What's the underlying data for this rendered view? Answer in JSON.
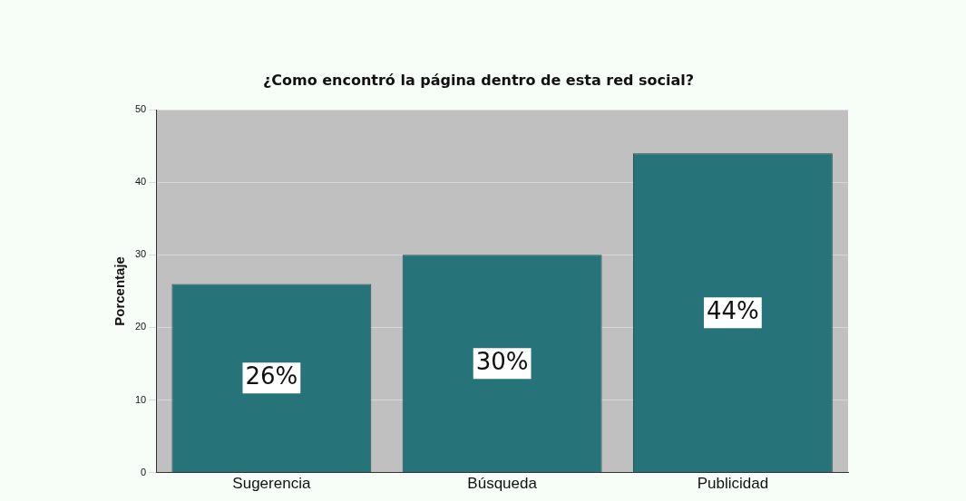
{
  "chart_data": {
    "type": "bar",
    "title": "¿Como encontró la página dentro de esta red social?",
    "ylabel": "Porcentaje",
    "categories": [
      "Sugerencia",
      "Búsqueda",
      "Publicidad"
    ],
    "values": [
      26,
      30,
      44
    ],
    "value_labels": [
      "26%",
      "30%",
      "44%"
    ],
    "color": "#26737a",
    "ylim": [
      0,
      50
    ],
    "yticks": [
      0,
      10,
      20,
      30,
      40,
      50
    ],
    "grid": "y",
    "legend": false
  }
}
